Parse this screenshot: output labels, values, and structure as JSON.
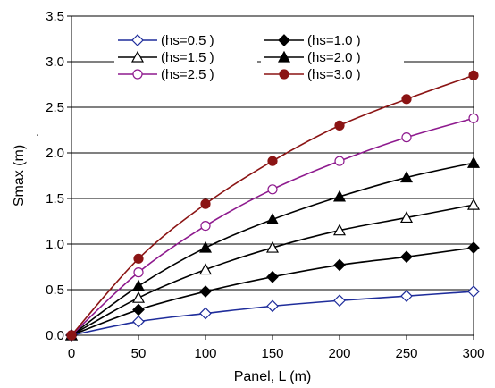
{
  "chart_data": {
    "type": "line",
    "title": "",
    "xlabel": "Panel, L (m)",
    "ylabel": "Smax (m)",
    "xlim": [
      0,
      300
    ],
    "ylim": [
      0,
      3.5
    ],
    "xticks": [
      "0",
      "50",
      "100",
      "150",
      "200",
      "250",
      "300"
    ],
    "yticks": [
      "0.0",
      "0.5",
      "1.0",
      "1.5",
      "2.0",
      "2.5",
      "3.0",
      "3.5"
    ],
    "grid": "horizontal",
    "legend_position": "top",
    "annotations": [
      "."
    ],
    "x": [
      0,
      50,
      100,
      150,
      200,
      250,
      300
    ],
    "series": [
      {
        "name": "(hs=0.5 )",
        "values": [
          0,
          0.15,
          0.24,
          0.32,
          0.38,
          0.43,
          0.48
        ],
        "color": "#1f2d9b",
        "marker": "diamond-open"
      },
      {
        "name": "(hs=1.0 )",
        "values": [
          0,
          0.28,
          0.48,
          0.64,
          0.77,
          0.86,
          0.96
        ],
        "color": "#000000",
        "marker": "diamond-filled"
      },
      {
        "name": "(hs=1.5 )",
        "values": [
          0,
          0.41,
          0.72,
          0.96,
          1.15,
          1.29,
          1.43
        ],
        "color": "#000000",
        "marker": "triangle-open"
      },
      {
        "name": "(hs=2.0 )",
        "values": [
          0,
          0.54,
          0.96,
          1.27,
          1.52,
          1.73,
          1.89
        ],
        "color": "#000000",
        "marker": "triangle-filled"
      },
      {
        "name": "(hs=2.5 )",
        "values": [
          0,
          0.69,
          1.2,
          1.6,
          1.91,
          2.17,
          2.38
        ],
        "color": "#8e1a8e",
        "marker": "circle-open"
      },
      {
        "name": "(hs=3.0 )",
        "values": [
          0,
          0.84,
          1.44,
          1.91,
          2.3,
          2.59,
          2.85
        ],
        "color": "#8b1414",
        "marker": "circle-filled"
      }
    ]
  }
}
